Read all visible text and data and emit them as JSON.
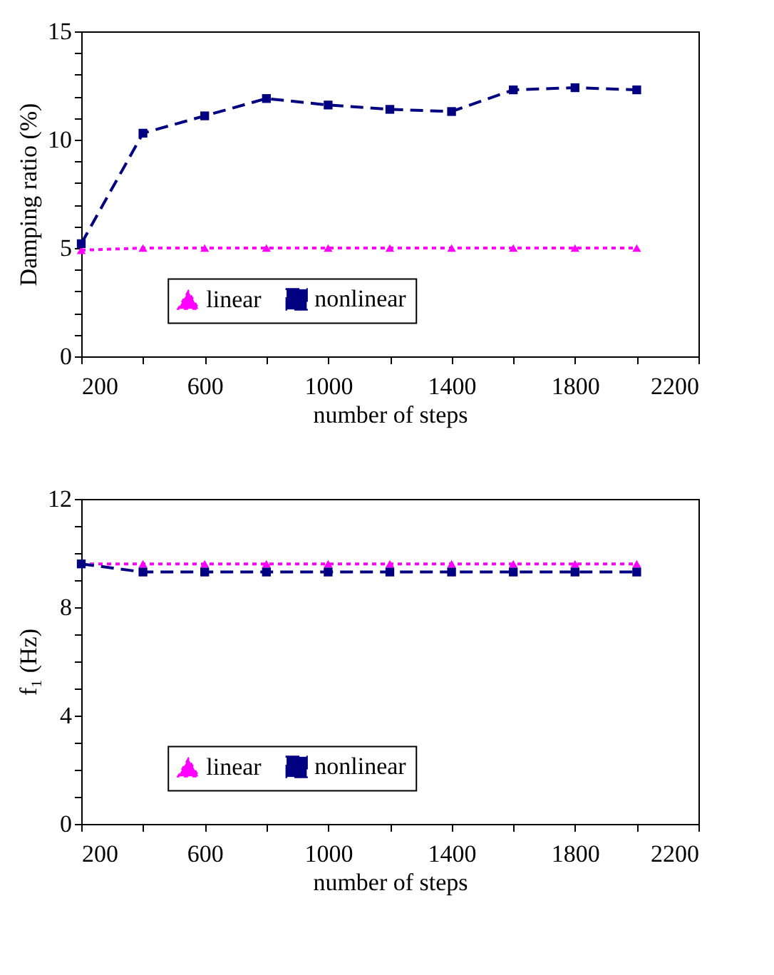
{
  "chart_data": [
    {
      "type": "line",
      "xlabel": "number of steps",
      "ylabel": "Damping ratio (%)",
      "x": [
        200,
        400,
        600,
        800,
        1000,
        1200,
        1400,
        1600,
        1800,
        2000
      ],
      "series": [
        {
          "name": "linear",
          "color": "#ff00ff",
          "marker": "triangle",
          "line_style": "dotted",
          "values": [
            4.9,
            5.0,
            5.0,
            5.0,
            5.0,
            5.0,
            5.0,
            5.0,
            5.0,
            5.0
          ]
        },
        {
          "name": "nonlinear",
          "color": "#000080",
          "marker": "square",
          "line_style": "dashed",
          "values": [
            5.2,
            10.3,
            11.1,
            11.9,
            11.6,
            11.4,
            11.3,
            12.3,
            12.4,
            12.3
          ]
        }
      ],
      "xlim": [
        200,
        2200
      ],
      "xticks": [
        200,
        {
          "value": 400,
          "label": null
        },
        600,
        {
          "value": 800,
          "label": null
        },
        1000,
        {
          "value": 1200,
          "label": null
        },
        1400,
        {
          "value": 1600,
          "label": null
        },
        1800,
        {
          "value": 2000,
          "label": null
        },
        2200
      ],
      "ylim": [
        0,
        15
      ],
      "yticks": [
        0,
        {
          "value": 1,
          "label": null
        },
        {
          "value": 2,
          "label": null
        },
        {
          "value": 3,
          "label": null
        },
        {
          "value": 4,
          "label": null
        },
        5,
        {
          "value": 6,
          "label": null
        },
        {
          "value": 7,
          "label": null
        },
        {
          "value": 8,
          "label": null
        },
        {
          "value": 9,
          "label": null
        },
        10,
        {
          "value": 11,
          "label": null
        },
        {
          "value": 12,
          "label": null
        },
        {
          "value": 13,
          "label": null
        },
        {
          "value": 14,
          "label": null
        },
        15
      ],
      "grid": false,
      "legend": "bottom"
    },
    {
      "type": "line",
      "xlabel": "number of steps",
      "ylabel": "f₁ (Hz)",
      "x": [
        200,
        400,
        600,
        800,
        1000,
        1200,
        1400,
        1600,
        1800,
        2000
      ],
      "series": [
        {
          "name": "linear",
          "color": "#ff00ff",
          "marker": "triangle",
          "line_style": "dotted",
          "values": [
            9.6,
            9.6,
            9.6,
            9.6,
            9.6,
            9.6,
            9.6,
            9.6,
            9.6,
            9.6
          ]
        },
        {
          "name": "nonlinear",
          "color": "#000080",
          "marker": "square",
          "line_style": "dashed",
          "values": [
            9.6,
            9.3,
            9.3,
            9.3,
            9.3,
            9.3,
            9.3,
            9.3,
            9.3,
            9.3
          ]
        }
      ],
      "xlim": [
        200,
        2200
      ],
      "xticks": [
        200,
        {
          "value": 400,
          "label": null
        },
        600,
        {
          "value": 800,
          "label": null
        },
        1000,
        {
          "value": 1200,
          "label": null
        },
        1400,
        {
          "value": 1600,
          "label": null
        },
        1800,
        {
          "value": 2000,
          "label": null
        },
        2200
      ],
      "ylim": [
        0,
        12
      ],
      "yticks": [
        0,
        {
          "value": 1,
          "label": null
        },
        {
          "value": 2,
          "label": null
        },
        {
          "value": 3,
          "label": null
        },
        4,
        {
          "value": 5,
          "label": null
        },
        {
          "value": 6,
          "label": null
        },
        {
          "value": 7,
          "label": null
        },
        8,
        {
          "value": 9,
          "label": null
        },
        {
          "value": 10,
          "label": null
        },
        {
          "value": 11,
          "label": null
        },
        12
      ],
      "grid": false,
      "legend": "bottom"
    }
  ]
}
